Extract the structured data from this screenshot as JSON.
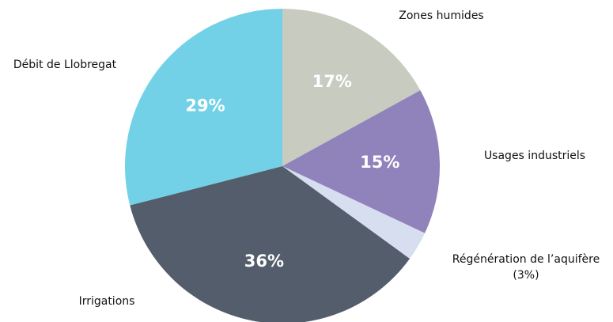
{
  "chart_data": {
    "type": "pie",
    "categories": [
      "Zones humides",
      "Usages industriels",
      "Régénération de l’aquifère (3%)",
      "Irrigations",
      "Débit de Llobregat"
    ],
    "values": [
      17,
      15,
      3,
      36,
      29
    ],
    "value_labels": [
      "17%",
      "15%",
      null,
      "36%",
      "29%"
    ],
    "colors": [
      "#c8cbc0",
      "#9083bb",
      "#d6def0",
      "#535d6c",
      "#72d1e6"
    ]
  }
}
